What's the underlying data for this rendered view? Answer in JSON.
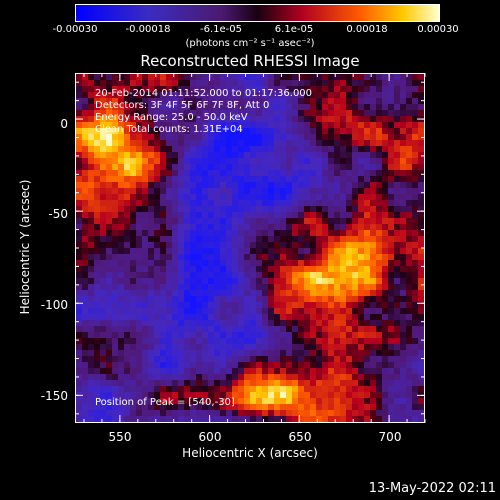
{
  "chart_data": {
    "type": "heatmap",
    "title": "Reconstructed RHESSI Image",
    "xlabel": "Heliocentric X (arcsec)",
    "ylabel": "Heliocentric Y (arcsec)",
    "xlim": [
      525,
      720
    ],
    "ylim": [
      -165,
      25
    ],
    "x_ticks": [
      550,
      600,
      650,
      700
    ],
    "y_ticks": [
      0,
      -50,
      -100,
      -150
    ],
    "colorbar": {
      "ticks": [
        "-0.00030",
        "-0.00018",
        "-6.1e-05",
        "6.1e-05",
        "0.00018",
        "0.00030"
      ],
      "values": [
        -0.0003,
        -0.00018,
        -6.1e-05,
        6.1e-05,
        0.00018,
        0.0003
      ],
      "units": "(photons cm",
      "units_full": "(photons cm⁻² s⁻¹ asec⁻²)"
    },
    "annotations": {
      "time_range": "20-Feb-2014 01:11:52.000 to 01:17:36.000",
      "detectors": "Detectors: 3F 4F 5F 6F 7F 8F, Att 0",
      "energy_range": "Energy Range: 25.0 - 50.0 keV",
      "counts": "Clean    Total counts: 1.31E+04",
      "peak": "Position of Peak = [540,-30]"
    },
    "colors": {
      "background": "#000000",
      "low": "#1a1aff",
      "mid": "#3a1060",
      "high": "#ffff80"
    }
  },
  "footer": {
    "timestamp": "13-May-2022 02:11"
  }
}
